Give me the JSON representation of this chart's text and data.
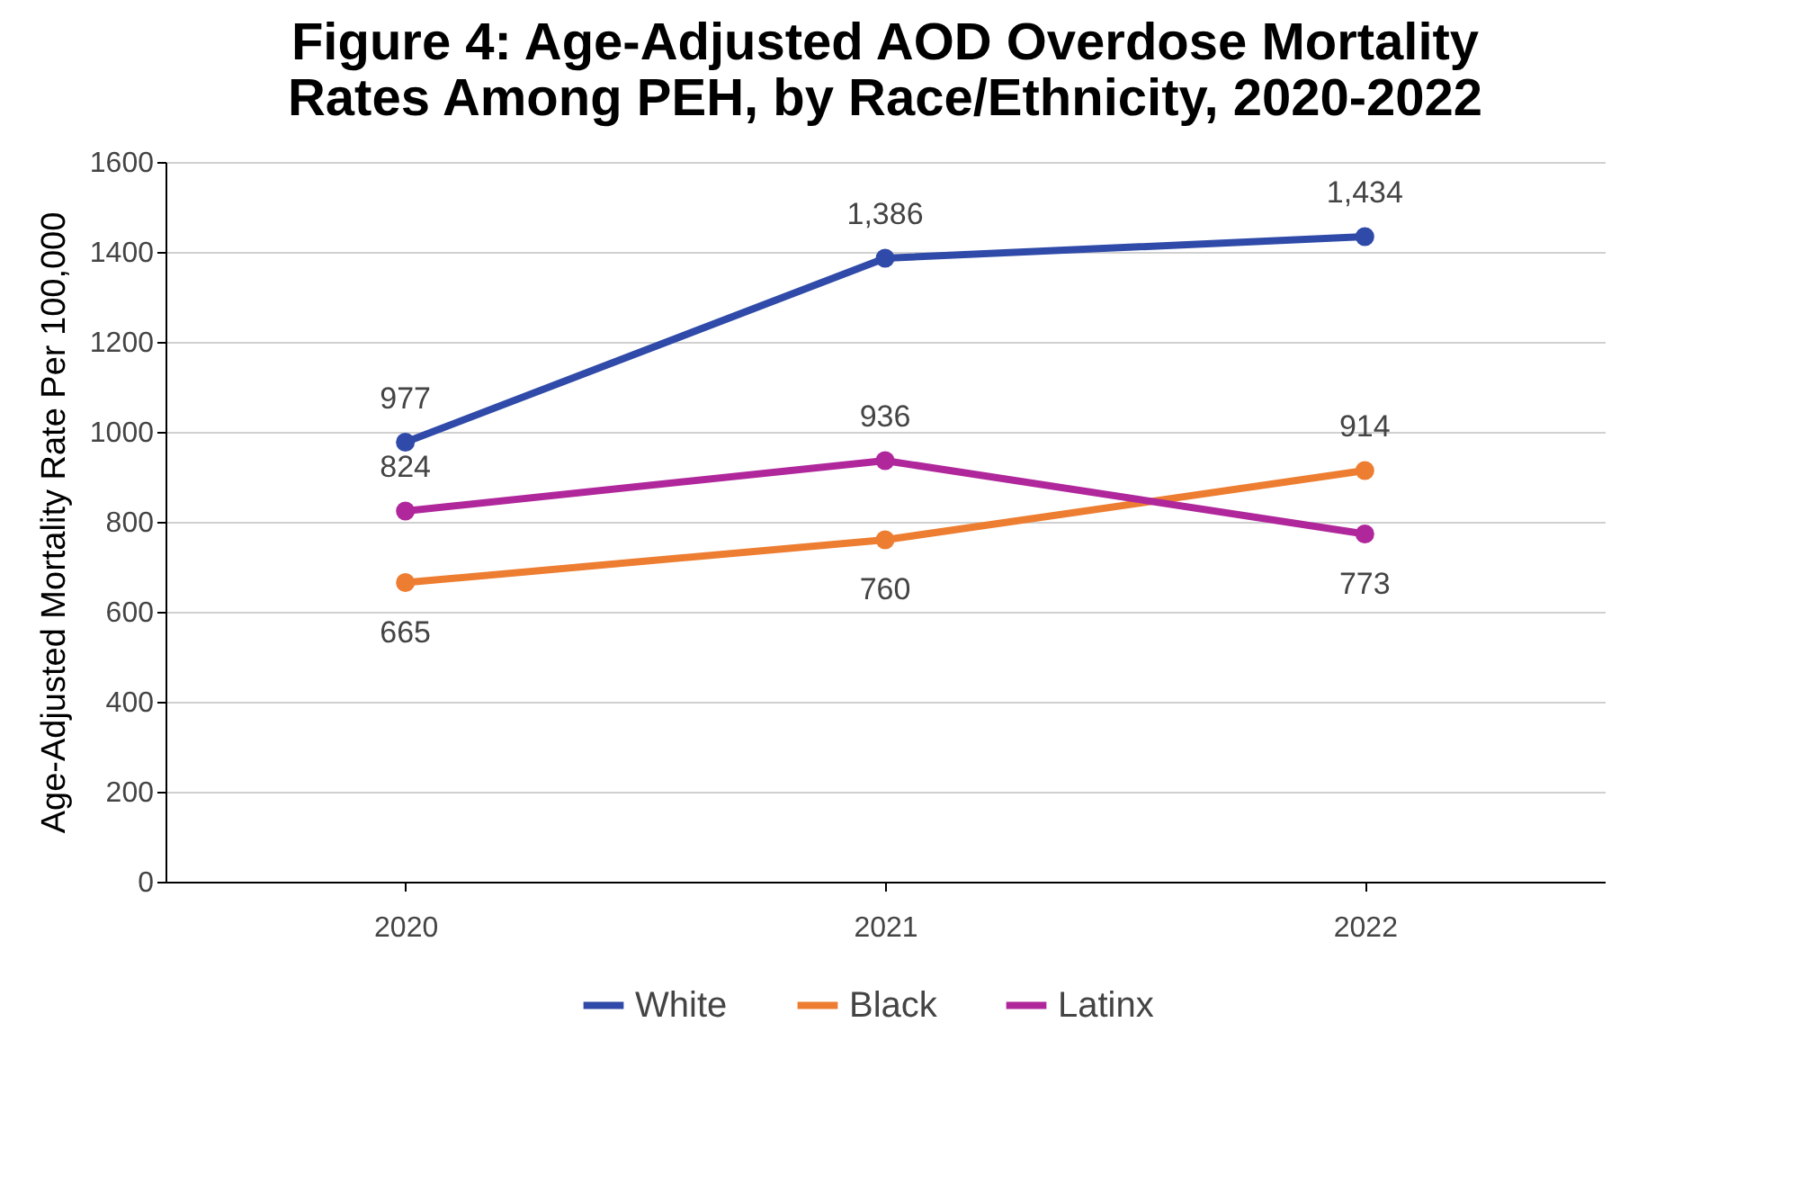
{
  "chart_data": {
    "type": "line",
    "title": "Figure 4: Age-Adjusted AOD Overdose Mortality Rates Among PEH, by Race/Ethnicity, 2020-2022",
    "ylabel": "Age-Adjusted Mortality Rate Per 100,000",
    "categories": [
      "2020",
      "2021",
      "2022"
    ],
    "series": [
      {
        "name": "White",
        "color": "#2f4aa8",
        "values": [
          977,
          1386,
          1434
        ],
        "value_labels": [
          "977",
          "1,386",
          "1,434"
        ]
      },
      {
        "name": "Black",
        "color": "#ed7d31",
        "values": [
          665,
          760,
          914
        ],
        "value_labels": [
          "665",
          "760",
          "914"
        ]
      },
      {
        "name": "Latinx",
        "color": "#b0279b",
        "values": [
          824,
          936,
          773
        ],
        "value_labels": [
          "824",
          "936",
          "773"
        ]
      }
    ],
    "ylim": [
      0,
      1600
    ],
    "yticks": [
      0,
      200,
      400,
      600,
      800,
      1000,
      1200,
      1400,
      1600
    ],
    "grid": "y",
    "legend": "bottom",
    "marker": "circle",
    "line_style": "solid"
  }
}
